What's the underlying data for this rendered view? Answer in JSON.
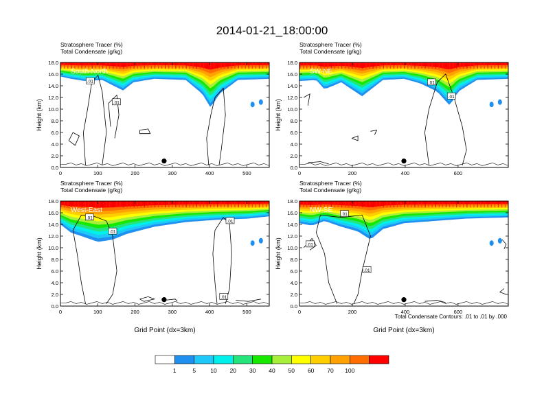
{
  "figure": {
    "title": "2014-01-21_18:00:00",
    "contour_note": "Total Condensate Contours: .01 to .01 by .000",
    "colors": {
      "bg": "#ffffff",
      "plume": "#ff0000",
      "line": "#000000"
    }
  },
  "chart_data": [
    {
      "type": "heatmap",
      "panel": "top-left",
      "label": "South-North",
      "title_lines": [
        "Stratosphere Tracer   (%)",
        "Total Condensate   (g/kg)"
      ],
      "ylabel": "Height (km)",
      "xlabel": "",
      "xlim": [
        0,
        560
      ],
      "ylim": [
        0,
        18
      ],
      "xticks": [
        0,
        100,
        200,
        300,
        400,
        500
      ],
      "xtick_labels": [
        "0",
        "100",
        "200",
        "300",
        "400",
        "500"
      ],
      "yticks": [
        0,
        2,
        4,
        6,
        8,
        10,
        12,
        14,
        16,
        18
      ],
      "ytick_labels": [
        "0.0",
        "2.0",
        "4.0",
        "6.0",
        "8.0",
        "10.0",
        "12.0",
        "14.0",
        "16.0",
        "18.0"
      ],
      "marker_x": 278,
      "contour_labels": [
        {
          "text": ".01",
          "x": 80,
          "y": 14.8
        },
        {
          "text": ".01",
          "x": 150,
          "y": 11.2
        }
      ]
    },
    {
      "type": "heatmap",
      "panel": "top-right",
      "label": "SW-NE",
      "title_lines": [
        "Stratosphere Tracer   (%)",
        "Total Condensate   (g/kg)"
      ],
      "ylabel": "Height (km)",
      "xlabel": "",
      "xlim": [
        0,
        790
      ],
      "ylim": [
        0,
        18
      ],
      "xticks": [
        0,
        200,
        400,
        600
      ],
      "xtick_labels": [
        "0",
        "200",
        "400",
        "600"
      ],
      "yticks": [
        0,
        2,
        4,
        6,
        8,
        10,
        12,
        14,
        16,
        18
      ],
      "ytick_labels": [
        "0.0",
        "2.0",
        "4.0",
        "6.0",
        "8.0",
        "10.0",
        "12.0",
        "14.0",
        "16.0",
        "18.0"
      ],
      "marker_x": 395,
      "contour_labels": [
        {
          "text": ".01",
          "x": 500,
          "y": 14.6
        },
        {
          "text": ".01",
          "x": 575,
          "y": 12.2
        }
      ]
    },
    {
      "type": "heatmap",
      "panel": "bottom-left",
      "label": "West-East",
      "title_lines": [
        "Stratosphere Tracer   (%)",
        "Total Condensate   (g/kg)"
      ],
      "ylabel": "Height (km)",
      "xlabel": "Grid Point (dx=3km)",
      "xlim": [
        0,
        560
      ],
      "ylim": [
        0,
        18
      ],
      "xticks": [
        0,
        100,
        200,
        300,
        400,
        500
      ],
      "xtick_labels": [
        "0",
        "100",
        "200",
        "300",
        "400",
        "500"
      ],
      "yticks": [
        0,
        2,
        4,
        6,
        8,
        10,
        12,
        14,
        16,
        18
      ],
      "ytick_labels": [
        "0.0",
        "2.0",
        "4.0",
        "6.0",
        "8.0",
        "10.0",
        "12.0",
        "14.0",
        "16.0",
        "18.0"
      ],
      "marker_x": 278,
      "contour_labels": [
        {
          "text": ".01",
          "x": 78,
          "y": 15.2
        },
        {
          "text": ".01",
          "x": 140,
          "y": 12.8
        },
        {
          "text": ".01",
          "x": 455,
          "y": 14.6
        },
        {
          "text": ".01",
          "x": 438,
          "y": 1.6
        }
      ]
    },
    {
      "type": "heatmap",
      "panel": "bottom-right",
      "label": "NW-SE",
      "title_lines": [
        "Stratosphere Tracer   (%)",
        "Total Condensate   (g/kg)"
      ],
      "ylabel": "Height (km)",
      "xlabel": "Grid Point (dx=3km)",
      "xlim": [
        0,
        790
      ],
      "ylim": [
        0,
        18
      ],
      "xticks": [
        0,
        200,
        400,
        600
      ],
      "xtick_labels": [
        "0",
        "200",
        "400",
        "600"
      ],
      "yticks": [
        0,
        2,
        4,
        6,
        8,
        10,
        12,
        14,
        16,
        18
      ],
      "ytick_labels": [
        "0.0",
        "2.0",
        "4.0",
        "6.0",
        "8.0",
        "10.0",
        "12.0",
        "14.0",
        "16.0",
        "18.0"
      ],
      "marker_x": 395,
      "contour_labels": [
        {
          "text": ".01",
          "x": 170,
          "y": 15.8
        },
        {
          "text": ".01",
          "x": 40,
          "y": 10.6
        },
        {
          "text": ".01",
          "x": 255,
          "y": 6.2
        }
      ]
    }
  ],
  "colorbar": {
    "labels": [
      "1",
      "5",
      "10",
      "20",
      "30",
      "40",
      "50",
      "60",
      "70",
      "100"
    ],
    "colors": [
      "#ffffff",
      "#1f8ff0",
      "#1ec8f8",
      "#00f0ec",
      "#25e47c",
      "#17e800",
      "#a8ef3a",
      "#ffff00",
      "#ffce00",
      "#ffa100",
      "#ff6d00",
      "#ff0000"
    ]
  }
}
